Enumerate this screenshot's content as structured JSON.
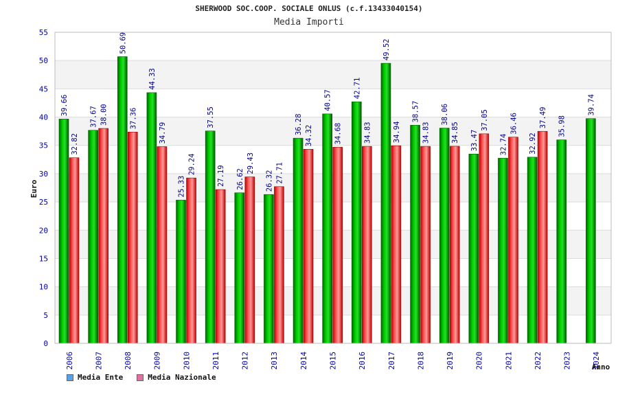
{
  "chart_data": {
    "type": "bar",
    "title": "SHERWOOD SOC.COOP. SOCIALE ONLUS (c.f.13433040154)",
    "subtitle": "Media Importi",
    "ylabel": "Euro",
    "xlabel": "Anno",
    "ylim": [
      0,
      55
    ],
    "yticks": [
      0,
      5,
      10,
      15,
      20,
      25,
      30,
      35,
      40,
      45,
      50,
      55
    ],
    "grid": true,
    "legend_position": "bottom-left",
    "categories": [
      "2006",
      "2007",
      "2008",
      "2009",
      "2010",
      "2011",
      "2012",
      "2013",
      "2014",
      "2015",
      "2016",
      "2017",
      "2018",
      "2019",
      "2020",
      "2021",
      "2022",
      "2023",
      "2024"
    ],
    "series": [
      {
        "name": "Media Ente",
        "color": "#00b000",
        "legend_color": "#5aa0e6",
        "values": [
          39.66,
          37.67,
          50.69,
          44.33,
          25.33,
          37.55,
          26.62,
          26.32,
          36.28,
          40.57,
          42.71,
          49.52,
          38.57,
          38.06,
          33.47,
          32.74,
          32.92,
          35.98,
          39.74
        ],
        "labels": [
          "39.66",
          "37.67",
          "50.69",
          "44.33",
          "25.33",
          "37.55",
          "26.62",
          "26.32",
          "36.28",
          "40.57",
          "42.71",
          "49.52",
          "38.57",
          "38.06",
          "33.47",
          "32.74",
          "32.92",
          "35.98",
          "39.74"
        ]
      },
      {
        "name": "Media Nazionale",
        "color": "#e02020",
        "legend_color": "#e070a0",
        "values": [
          32.82,
          38.0,
          37.36,
          34.79,
          29.24,
          27.19,
          29.43,
          27.71,
          34.32,
          34.68,
          34.83,
          34.94,
          34.83,
          34.85,
          37.05,
          36.46,
          37.49,
          null,
          null
        ],
        "labels": [
          "32.82",
          "38.00",
          "37.36",
          "34.79",
          "29.24",
          "27.19",
          "29.43",
          "27.71",
          "34.32",
          "34.68",
          "34.83",
          "34.94",
          "34.83",
          "34.85",
          "37.05",
          "36.46",
          "37.49",
          null,
          null
        ]
      }
    ]
  }
}
